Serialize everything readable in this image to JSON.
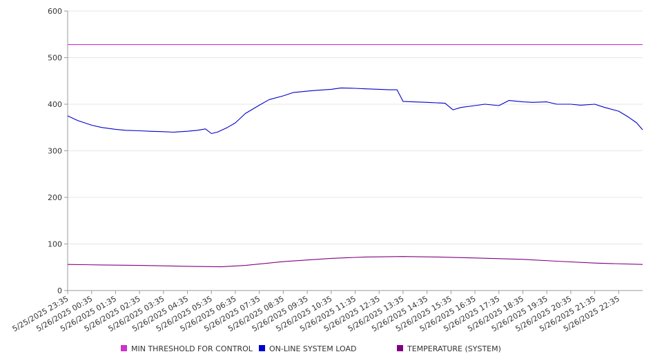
{
  "chart_data": {
    "type": "line",
    "title": "",
    "xlabel": "",
    "ylabel": "",
    "ylim": [
      0,
      600
    ],
    "yticks": [
      0,
      100,
      200,
      300,
      400,
      500,
      600
    ],
    "grid": "horizontal",
    "legend_position": "bottom",
    "x_tick_labels": [
      "5/25/2025 23:35",
      "5/26/2025 00:35",
      "5/26/2025 01:35",
      "5/26/2025 02:35",
      "5/26/2025 03:35",
      "5/26/2025 04:35",
      "5/26/2025 05:35",
      "5/26/2025 06:35",
      "5/26/2025 07:35",
      "5/26/2025 08:35",
      "5/26/2025 09:35",
      "5/26/2025 10:35",
      "5/26/2025 11:35",
      "5/26/2025 12:35",
      "5/26/2025 13:35",
      "5/26/2025 14:35",
      "5/26/2025 15:35",
      "5/26/2025 16:35",
      "5/26/2025 17:35",
      "5/26/2025 18:35",
      "5/26/2025 19:35",
      "5/26/2025 20:35",
      "5/26/2025 21:35",
      "5/26/2025 22:35"
    ],
    "x_range": [
      "5/25/2025 23:35",
      "5/26/2025 23:35"
    ],
    "series": [
      {
        "name": "MIN THRESHOLD FOR CONTROL",
        "color": "#cc33cc",
        "x": [
          "5/25/2025 23:35",
          "5/26/2025 23:35"
        ],
        "y": [
          528,
          528
        ]
      },
      {
        "name": "ON-LINE SYSTEM LOAD",
        "color": "#0000cc",
        "x": [
          "5/25/2025 23:35",
          "5/26/2025 00:00",
          "5/26/2025 00:35",
          "5/26/2025 01:00",
          "5/26/2025 01:35",
          "5/26/2025 02:00",
          "5/26/2025 02:35",
          "5/26/2025 03:00",
          "5/26/2025 03:35",
          "5/26/2025 04:00",
          "5/26/2025 04:35",
          "5/26/2025 05:00",
          "5/26/2025 05:20",
          "5/26/2025 05:35",
          "5/26/2025 05:50",
          "5/26/2025 06:15",
          "5/26/2025 06:35",
          "5/26/2025 07:00",
          "5/26/2025 07:35",
          "5/26/2025 08:00",
          "5/26/2025 08:35",
          "5/26/2025 09:00",
          "5/26/2025 09:35",
          "5/26/2025 10:00",
          "5/26/2025 10:35",
          "5/26/2025 11:00",
          "5/26/2025 11:35",
          "5/26/2025 12:00",
          "5/26/2025 12:35",
          "5/26/2025 13:00",
          "5/26/2025 13:20",
          "5/26/2025 13:35",
          "5/26/2025 14:00",
          "5/26/2025 14:35",
          "5/26/2025 15:00",
          "5/26/2025 15:20",
          "5/26/2025 15:40",
          "5/26/2025 16:00",
          "5/26/2025 16:35",
          "5/26/2025 17:00",
          "5/26/2025 17:35",
          "5/26/2025 18:00",
          "5/26/2025 18:35",
          "5/26/2025 19:00",
          "5/26/2025 19:35",
          "5/26/2025 20:00",
          "5/26/2025 20:35",
          "5/26/2025 21:00",
          "5/26/2025 21:35",
          "5/26/2025 22:00",
          "5/26/2025 22:35",
          "5/26/2025 23:00",
          "5/26/2025 23:20",
          "5/26/2025 23:35"
        ],
        "y": [
          375,
          365,
          355,
          350,
          346,
          344,
          343,
          342,
          341,
          340,
          342,
          344,
          347,
          337,
          340,
          350,
          360,
          380,
          398,
          410,
          418,
          425,
          428,
          430,
          432,
          435,
          434,
          433,
          432,
          431,
          431,
          406,
          405,
          404,
          403,
          402,
          388,
          393,
          397,
          400,
          397,
          408,
          405,
          404,
          405,
          400,
          400,
          398,
          400,
          393,
          385,
          372,
          360,
          345
        ]
      },
      {
        "name": "TEMPERATURE (SYSTEM)",
        "color": "#800080",
        "x": [
          "5/25/2025 23:35",
          "5/26/2025 01:00",
          "5/26/2025 02:35",
          "5/26/2025 04:35",
          "5/26/2025 06:00",
          "5/26/2025 07:00",
          "5/26/2025 08:35",
          "5/26/2025 10:35",
          "5/26/2025 12:00",
          "5/26/2025 13:35",
          "5/26/2025 15:00",
          "5/26/2025 16:35",
          "5/26/2025 18:35",
          "5/26/2025 20:00",
          "5/26/2025 21:35",
          "5/26/2025 23:35"
        ],
        "y": [
          56,
          55,
          54,
          52,
          51,
          54,
          62,
          69,
          72,
          73,
          72,
          70,
          67,
          63,
          59,
          56
        ]
      }
    ]
  }
}
